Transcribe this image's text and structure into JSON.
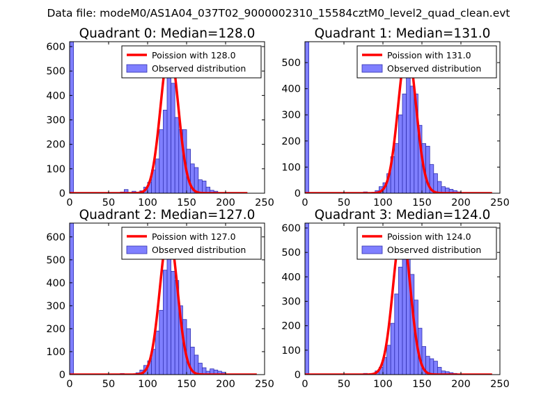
{
  "suptitle": "Data file: modeM0/AS1A04_037T02_9000002310_15584cztM0_level2_quad_clean.evt",
  "colors": {
    "bar_fill": "#7f7fff",
    "bar_edge": "#3030b0",
    "poisson_line": "#ff0000",
    "axes": "#000000",
    "background": "#ffffff"
  },
  "chart_data": [
    {
      "type": "bar",
      "title": "Quadrant 0: Median=128.0",
      "xlim": [
        0,
        250
      ],
      "ylim": [
        0,
        620
      ],
      "xticks": [
        0,
        50,
        100,
        150,
        200,
        250
      ],
      "yticks": [
        0,
        100,
        200,
        300,
        400,
        500,
        600
      ],
      "bin_width": 5,
      "legend": {
        "location": "top-right",
        "entries": [
          "Poission with 128.0",
          "Observed distribution"
        ]
      },
      "poisson_mean": 128.0,
      "poisson_peak": 590,
      "poisson_xrange": [
        0,
        228
      ],
      "bins": [
        {
          "x": 0,
          "count": 620
        },
        {
          "x": 65,
          "count": 5
        },
        {
          "x": 70,
          "count": 15
        },
        {
          "x": 80,
          "count": 8
        },
        {
          "x": 90,
          "count": 10
        },
        {
          "x": 95,
          "count": 25
        },
        {
          "x": 100,
          "count": 45
        },
        {
          "x": 105,
          "count": 95
        },
        {
          "x": 110,
          "count": 140
        },
        {
          "x": 115,
          "count": 260
        },
        {
          "x": 120,
          "count": 340
        },
        {
          "x": 125,
          "count": 570
        },
        {
          "x": 130,
          "count": 450
        },
        {
          "x": 135,
          "count": 310
        },
        {
          "x": 140,
          "count": 260
        },
        {
          "x": 145,
          "count": 260
        },
        {
          "x": 150,
          "count": 180
        },
        {
          "x": 155,
          "count": 120
        },
        {
          "x": 160,
          "count": 105
        },
        {
          "x": 165,
          "count": 55
        },
        {
          "x": 170,
          "count": 50
        },
        {
          "x": 175,
          "count": 25
        },
        {
          "x": 180,
          "count": 12
        },
        {
          "x": 185,
          "count": 8
        }
      ]
    },
    {
      "type": "bar",
      "title": "Quadrant 1: Median=131.0",
      "xlim": [
        0,
        250
      ],
      "ylim": [
        0,
        580
      ],
      "xticks": [
        0,
        50,
        100,
        150,
        200,
        250
      ],
      "yticks": [
        0,
        100,
        200,
        300,
        400,
        500
      ],
      "bin_width": 5,
      "legend": {
        "location": "top-right",
        "entries": [
          "Poission with 131.0",
          "Observed distribution"
        ]
      },
      "poisson_mean": 131.0,
      "poisson_peak": 555,
      "poisson_xrange": [
        0,
        240
      ],
      "bins": [
        {
          "x": 0,
          "count": 580
        },
        {
          "x": 75,
          "count": 5
        },
        {
          "x": 90,
          "count": 10
        },
        {
          "x": 95,
          "count": 25
        },
        {
          "x": 100,
          "count": 40
        },
        {
          "x": 105,
          "count": 75
        },
        {
          "x": 110,
          "count": 140
        },
        {
          "x": 115,
          "count": 190
        },
        {
          "x": 120,
          "count": 300
        },
        {
          "x": 125,
          "count": 380
        },
        {
          "x": 130,
          "count": 520
        },
        {
          "x": 135,
          "count": 410
        },
        {
          "x": 140,
          "count": 380
        },
        {
          "x": 145,
          "count": 260
        },
        {
          "x": 150,
          "count": 190
        },
        {
          "x": 155,
          "count": 180
        },
        {
          "x": 160,
          "count": 110
        },
        {
          "x": 165,
          "count": 75
        },
        {
          "x": 170,
          "count": 45
        },
        {
          "x": 175,
          "count": 25
        },
        {
          "x": 180,
          "count": 20
        },
        {
          "x": 185,
          "count": 15
        },
        {
          "x": 190,
          "count": 10
        },
        {
          "x": 195,
          "count": 5
        }
      ]
    },
    {
      "type": "bar",
      "title": "Quadrant 2: Median=127.0",
      "xlim": [
        0,
        250
      ],
      "ylim": [
        0,
        660
      ],
      "xticks": [
        0,
        50,
        100,
        150,
        200,
        250
      ],
      "yticks": [
        0,
        100,
        200,
        300,
        400,
        500,
        600
      ],
      "bin_width": 5,
      "legend": {
        "location": "top-right",
        "entries": [
          "Poission with 127.0",
          "Observed distribution"
        ]
      },
      "poisson_mean": 127.0,
      "poisson_peak": 620,
      "poisson_xrange": [
        0,
        240
      ],
      "bins": [
        {
          "x": 0,
          "count": 660
        },
        {
          "x": 65,
          "count": 5
        },
        {
          "x": 85,
          "count": 8
        },
        {
          "x": 90,
          "count": 20
        },
        {
          "x": 95,
          "count": 40
        },
        {
          "x": 100,
          "count": 60
        },
        {
          "x": 105,
          "count": 110
        },
        {
          "x": 110,
          "count": 190
        },
        {
          "x": 115,
          "count": 280
        },
        {
          "x": 120,
          "count": 455
        },
        {
          "x": 125,
          "count": 600
        },
        {
          "x": 130,
          "count": 450
        },
        {
          "x": 135,
          "count": 410
        },
        {
          "x": 140,
          "count": 300
        },
        {
          "x": 145,
          "count": 240
        },
        {
          "x": 150,
          "count": 200
        },
        {
          "x": 155,
          "count": 120
        },
        {
          "x": 160,
          "count": 85
        },
        {
          "x": 165,
          "count": 50
        },
        {
          "x": 170,
          "count": 30
        },
        {
          "x": 175,
          "count": 15
        },
        {
          "x": 180,
          "count": 25
        },
        {
          "x": 185,
          "count": 20
        },
        {
          "x": 190,
          "count": 15
        },
        {
          "x": 195,
          "count": 10
        }
      ]
    },
    {
      "type": "bar",
      "title": "Quadrant 3: Median=124.0",
      "xlim": [
        0,
        250
      ],
      "ylim": [
        0,
        620
      ],
      "xticks": [
        0,
        50,
        100,
        150,
        200,
        250
      ],
      "yticks": [
        0,
        100,
        200,
        300,
        400,
        500,
        600
      ],
      "bin_width": 5,
      "legend": {
        "location": "top-right",
        "entries": [
          "Poission with 124.0",
          "Observed distribution"
        ]
      },
      "poisson_mean": 124.0,
      "poisson_peak": 590,
      "poisson_xrange": [
        0,
        240
      ],
      "bins": [
        {
          "x": 0,
          "count": 620
        },
        {
          "x": 75,
          "count": 5
        },
        {
          "x": 90,
          "count": 15
        },
        {
          "x": 95,
          "count": 30
        },
        {
          "x": 100,
          "count": 70
        },
        {
          "x": 105,
          "count": 120
        },
        {
          "x": 110,
          "count": 210
        },
        {
          "x": 115,
          "count": 330
        },
        {
          "x": 120,
          "count": 440
        },
        {
          "x": 125,
          "count": 560
        },
        {
          "x": 130,
          "count": 490
        },
        {
          "x": 135,
          "count": 410
        },
        {
          "x": 140,
          "count": 305
        },
        {
          "x": 145,
          "count": 190
        },
        {
          "x": 150,
          "count": 115
        },
        {
          "x": 155,
          "count": 75
        },
        {
          "x": 160,
          "count": 65
        },
        {
          "x": 165,
          "count": 55
        },
        {
          "x": 170,
          "count": 30
        },
        {
          "x": 175,
          "count": 15
        },
        {
          "x": 180,
          "count": 12
        },
        {
          "x": 185,
          "count": 8
        },
        {
          "x": 190,
          "count": 5
        }
      ]
    }
  ]
}
